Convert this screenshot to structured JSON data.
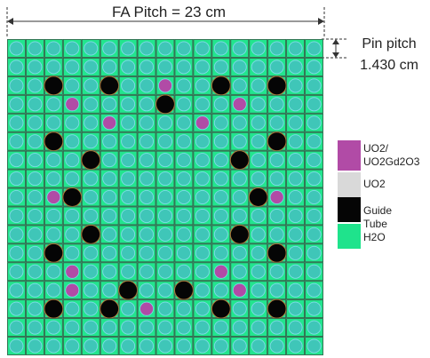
{
  "header": {
    "title": "FA Pitch = 23 cm"
  },
  "pin_pitch": {
    "line1": "Pin pitch",
    "line2": "1.430 cm"
  },
  "legend": [
    {
      "id": "uo2gd",
      "label": "UO2/\nUO2Gd2O3",
      "color": "#b14ba6"
    },
    {
      "id": "uo2",
      "label": "UO2",
      "color": "#d9d9d9"
    },
    {
      "id": "guide",
      "label": "Guide Tube",
      "color": "#050505"
    },
    {
      "id": "h2o",
      "label": "H2O",
      "color": "#1fe38c"
    }
  ],
  "lattice": {
    "size": 17,
    "colors": {
      "water": "#22e58e",
      "grid": "#3a5a48",
      "fuel_pin": "#3fc6b8",
      "fuel_ring": "#7fdce6",
      "guide_tube": "#050505",
      "guide_ring": "#b07a3a",
      "gd_pin": "#b14ba6"
    },
    "guide_tubes": [
      [
        2,
        2
      ],
      [
        2,
        5
      ],
      [
        2,
        11
      ],
      [
        2,
        14
      ],
      [
        3,
        8
      ],
      [
        5,
        2
      ],
      [
        5,
        14
      ],
      [
        6,
        4
      ],
      [
        6,
        12
      ],
      [
        8,
        3
      ],
      [
        8,
        13
      ],
      [
        10,
        4
      ],
      [
        10,
        12
      ],
      [
        11,
        2
      ],
      [
        11,
        14
      ],
      [
        13,
        6
      ],
      [
        13,
        9
      ],
      [
        14,
        2
      ],
      [
        14,
        5
      ],
      [
        14,
        11
      ],
      [
        14,
        14
      ]
    ],
    "gd_pins": [
      [
        2,
        8
      ],
      [
        3,
        3
      ],
      [
        3,
        12
      ],
      [
        4,
        5
      ],
      [
        4,
        10
      ],
      [
        8,
        2
      ],
      [
        8,
        14
      ],
      [
        12,
        3
      ],
      [
        12,
        11
      ],
      [
        13,
        3
      ],
      [
        13,
        12
      ],
      [
        14,
        7
      ]
    ]
  }
}
